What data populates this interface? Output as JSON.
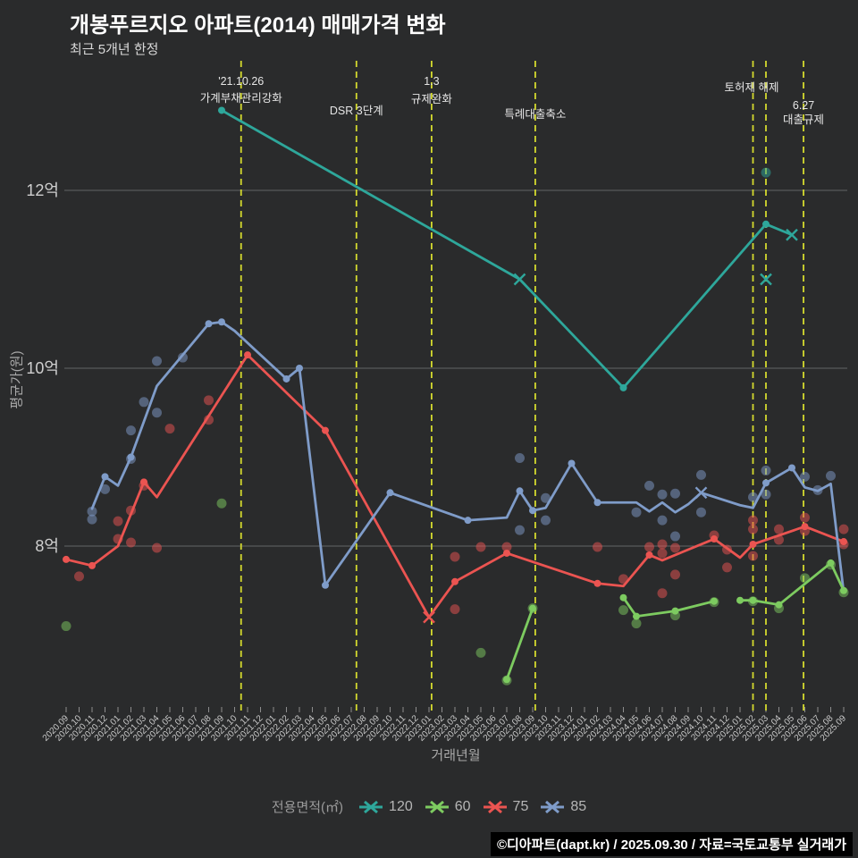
{
  "title": "개봉푸르지오 아파트(2014) 매매가격 변화",
  "subtitle": "최근 5개년 한정",
  "footer": "©디아파트(dapt.kr) / 2025.09.30 / 자료=국토교통부 실거래가",
  "y_axis": {
    "label": "평균가(원)",
    "ticks": [
      {
        "label": "8억",
        "value": 8
      },
      {
        "label": "10억",
        "value": 10
      },
      {
        "label": "12억",
        "value": 12
      }
    ]
  },
  "x_axis": {
    "label": "거래년월",
    "tick_labels": [
      "2020.09",
      "2020.10",
      "2020.11",
      "2020.12",
      "2021.01",
      "2021.02",
      "2021.03",
      "2021.04",
      "2021.05",
      "2021.06",
      "2021.07",
      "2021.08",
      "2021.09",
      "2021.10",
      "2021.11",
      "2021.12",
      "2022.01",
      "2022.02",
      "2022.03",
      "2022.04",
      "2022.05",
      "2022.06",
      "2022.07",
      "2022.08",
      "2022.09",
      "2022.10",
      "2022.11",
      "2022.12",
      "2023.01",
      "2023.02",
      "2023.03",
      "2023.04",
      "2023.05",
      "2023.06",
      "2023.07",
      "2023.08",
      "2023.09",
      "2023.10",
      "2023.11",
      "2023.12",
      "2024.01",
      "2024.02",
      "2024.03",
      "2024.04",
      "2024.05",
      "2024.06",
      "2024.07",
      "2024.08",
      "2024.09",
      "2024.10",
      "2024.11",
      "2024.12",
      "2025.01",
      "2025.02",
      "2025.03",
      "2025.04",
      "2025.05",
      "2025.06",
      "2025.07",
      "2025.08",
      "2025.09"
    ]
  },
  "legend": {
    "title": "전용면적(㎡)",
    "items": [
      {
        "label": "120",
        "color": "#2ea79b"
      },
      {
        "label": "60",
        "color": "#7dcb60"
      },
      {
        "label": "75",
        "color": "#eb5451"
      },
      {
        "label": "85",
        "color": "#7f9cc9"
      }
    ]
  },
  "colors": {
    "background": "#2a2b2c",
    "grid": "#7c7d7f",
    "event_line": "#d4da2e",
    "annotation_text": "#e6e6e6",
    "tick_text": "#c9c9c9"
  },
  "chart_data": {
    "type": "line",
    "title": "개봉푸르지오 아파트(2014) 매매가격 변화",
    "xlabel": "거래년월",
    "ylabel": "평균가(원)",
    "x_unit": "months since 2020.09 (index 0 = 2020.09, 60 = 2025.09)",
    "ylim": [
      6.2,
      13.5
    ],
    "grid": "horizontal-only",
    "legend_position": "bottom",
    "event_vlines_months": [
      13.5,
      22.4,
      28.2,
      36.2,
      53.0,
      54.0,
      56.9
    ],
    "annotations": [
      {
        "m": 13.5,
        "lines": [
          "'21.10.26",
          "가계부채관리강화"
        ],
        "line_y": [
          95,
          114
        ]
      },
      {
        "m": 22.4,
        "lines": [
          "DSR 3단계"
        ],
        "line_y": [
          128
        ]
      },
      {
        "m": 28.2,
        "lines": [
          "1.3",
          "규제완화"
        ],
        "line_y": [
          95,
          115
        ]
      },
      {
        "m": 36.2,
        "lines": [
          "특례대출축소"
        ],
        "line_y": [
          132
        ]
      },
      {
        "m": 52.9,
        "lines": [
          "토허제 해제"
        ],
        "line_y": [
          102
        ]
      },
      {
        "m": 56.9,
        "lines": [
          "6.27",
          "대출규제"
        ],
        "line_y": [
          122,
          138
        ]
      }
    ],
    "series": [
      {
        "name": "120",
        "color": "#2ea79b",
        "segments": [
          [
            [
              12,
              12.9
            ],
            [
              35,
              11.0
            ],
            [
              43,
              9.78
            ],
            [
              54,
              11.62
            ],
            [
              56,
              11.5
            ]
          ]
        ],
        "dots": [
          [
            12,
            12.9
          ],
          [
            43,
            9.78
          ],
          [
            54,
            11.62
          ]
        ],
        "xmarks": [
          [
            35,
            11.0
          ],
          [
            56,
            11.5
          ],
          [
            54,
            11.0
          ]
        ],
        "scatter": [
          [
            54,
            12.2
          ]
        ]
      },
      {
        "name": "75",
        "color": "#eb5451",
        "segments": [
          [
            [
              0,
              7.85
            ],
            [
              2,
              7.78
            ],
            [
              4,
              8.0
            ],
            [
              6,
              8.72
            ],
            [
              7,
              8.55
            ],
            [
              14,
              10.15
            ],
            [
              20,
              9.3
            ],
            [
              28,
              7.2
            ],
            [
              30,
              7.6
            ],
            [
              34,
              7.92
            ],
            [
              41,
              7.58
            ],
            [
              43,
              7.55
            ],
            [
              45,
              7.9
            ],
            [
              46,
              7.84
            ],
            [
              50,
              8.08
            ],
            [
              52,
              7.87
            ],
            [
              53,
              8.02
            ],
            [
              57,
              8.22
            ],
            [
              60,
              8.05
            ]
          ]
        ],
        "dots": [
          [
            0,
            7.85
          ],
          [
            2,
            7.78
          ],
          [
            6,
            8.72
          ],
          [
            14,
            10.15
          ],
          [
            20,
            9.3
          ],
          [
            30,
            7.6
          ],
          [
            34,
            7.92
          ],
          [
            41,
            7.58
          ],
          [
            45,
            7.9
          ],
          [
            50,
            8.08
          ],
          [
            53,
            8.02
          ],
          [
            57,
            8.22
          ],
          [
            60,
            8.05
          ]
        ],
        "xmarks": [
          [
            28,
            7.2
          ]
        ],
        "scatter": [
          [
            1,
            7.66
          ],
          [
            4,
            8.28
          ],
          [
            4,
            8.08
          ],
          [
            5,
            8.4
          ],
          [
            5,
            8.04
          ],
          [
            6,
            8.68
          ],
          [
            7,
            7.98
          ],
          [
            8,
            9.32
          ],
          [
            11,
            9.64
          ],
          [
            11,
            9.42
          ],
          [
            30,
            7.88
          ],
          [
            30,
            7.29
          ],
          [
            32,
            7.99
          ],
          [
            34,
            7.99
          ],
          [
            41,
            7.99
          ],
          [
            43,
            7.63
          ],
          [
            45,
            7.99
          ],
          [
            46,
            8.02
          ],
          [
            46,
            7.92
          ],
          [
            46,
            7.47
          ],
          [
            47,
            7.98
          ],
          [
            47,
            7.68
          ],
          [
            50,
            8.12
          ],
          [
            51,
            7.96
          ],
          [
            51,
            7.76
          ],
          [
            53,
            8.29
          ],
          [
            53,
            8.19
          ],
          [
            53,
            7.89
          ],
          [
            55,
            8.19
          ],
          [
            55,
            8.07
          ],
          [
            57,
            8.32
          ],
          [
            57,
            8.17
          ],
          [
            60,
            8.19
          ],
          [
            60,
            8.02
          ]
        ]
      },
      {
        "name": "85",
        "color": "#7f9cc9",
        "segments": [
          [
            [
              2,
              8.42
            ],
            [
              3,
              8.78
            ],
            [
              4,
              8.68
            ],
            [
              5,
              9.0
            ],
            [
              7,
              9.8
            ],
            [
              11,
              10.5
            ],
            [
              12,
              10.52
            ],
            [
              13,
              10.42
            ],
            [
              17,
              9.88
            ],
            [
              18,
              10.0
            ],
            [
              20,
              7.56
            ],
            [
              25,
              8.6
            ],
            [
              31,
              8.29
            ],
            [
              34,
              8.32
            ],
            [
              35,
              8.62
            ],
            [
              36,
              8.4
            ],
            [
              37,
              8.43
            ],
            [
              39,
              8.93
            ],
            [
              41,
              8.49
            ],
            [
              42,
              8.49
            ],
            [
              44,
              8.49
            ],
            [
              45,
              8.39
            ],
            [
              46,
              8.49
            ],
            [
              47,
              8.38
            ],
            [
              48,
              8.47
            ],
            [
              49,
              8.6
            ],
            [
              52,
              8.46
            ],
            [
              53,
              8.43
            ],
            [
              54,
              8.71
            ],
            [
              56,
              8.88
            ],
            [
              57,
              8.66
            ],
            [
              58,
              8.62
            ],
            [
              59,
              8.7
            ],
            [
              60,
              7.48
            ]
          ]
        ],
        "dots": [
          [
            3,
            8.78
          ],
          [
            5,
            9.0
          ],
          [
            11,
            10.5
          ],
          [
            12,
            10.52
          ],
          [
            17,
            9.88
          ],
          [
            18,
            10.0
          ],
          [
            20,
            7.56
          ],
          [
            25,
            8.6
          ],
          [
            31,
            8.29
          ],
          [
            35,
            8.62
          ],
          [
            36,
            8.4
          ],
          [
            39,
            8.93
          ],
          [
            41,
            8.49
          ],
          [
            54,
            8.71
          ],
          [
            56,
            8.88
          ]
        ],
        "xmarks": [
          [
            49,
            8.6
          ]
        ],
        "scatter": [
          [
            2,
            8.39
          ],
          [
            2,
            8.3
          ],
          [
            3,
            8.64
          ],
          [
            5,
            9.3
          ],
          [
            5,
            8.98
          ],
          [
            6,
            9.62
          ],
          [
            7,
            10.08
          ],
          [
            7,
            9.5
          ],
          [
            9,
            10.12
          ],
          [
            35,
            8.99
          ],
          [
            35,
            8.18
          ],
          [
            37,
            8.54
          ],
          [
            37,
            8.29
          ],
          [
            44,
            8.38
          ],
          [
            45,
            8.68
          ],
          [
            46,
            8.58
          ],
          [
            46,
            8.29
          ],
          [
            47,
            8.59
          ],
          [
            47,
            8.11
          ],
          [
            49,
            8.8
          ],
          [
            49,
            8.38
          ],
          [
            53,
            8.55
          ],
          [
            54,
            8.58
          ],
          [
            54,
            8.85
          ],
          [
            57,
            8.78
          ],
          [
            58,
            8.63
          ],
          [
            59,
            8.79
          ]
        ]
      },
      {
        "name": "60",
        "color": "#7dcb60",
        "segments": [
          [
            [
              34,
              6.5
            ],
            [
              36,
              7.3
            ]
          ],
          [
            [
              43,
              7.42
            ],
            [
              44,
              7.21
            ],
            [
              47,
              7.27
            ],
            [
              50,
              7.38
            ]
          ],
          [
            [
              52,
              7.39
            ],
            [
              53,
              7.39
            ],
            [
              55,
              7.34
            ],
            [
              59,
              7.81
            ],
            [
              60,
              7.5
            ]
          ]
        ],
        "dots": [
          [
            34,
            6.5
          ],
          [
            36,
            7.3
          ],
          [
            43,
            7.42
          ],
          [
            44,
            7.21
          ],
          [
            47,
            7.27
          ],
          [
            50,
            7.38
          ],
          [
            52,
            7.39
          ],
          [
            53,
            7.39
          ],
          [
            55,
            7.34
          ],
          [
            59,
            7.81
          ],
          [
            60,
            7.5
          ]
        ],
        "xmarks": [],
        "scatter": [
          [
            0,
            7.1
          ],
          [
            12,
            8.48
          ],
          [
            32,
            6.8
          ],
          [
            34,
            6.49
          ],
          [
            36,
            7.3
          ],
          [
            43,
            7.28
          ],
          [
            44,
            7.13
          ],
          [
            47,
            7.22
          ],
          [
            50,
            7.37
          ],
          [
            53,
            7.38
          ],
          [
            55,
            7.3
          ],
          [
            57,
            7.64
          ],
          [
            59,
            7.79
          ],
          [
            60,
            7.48
          ]
        ]
      }
    ]
  }
}
